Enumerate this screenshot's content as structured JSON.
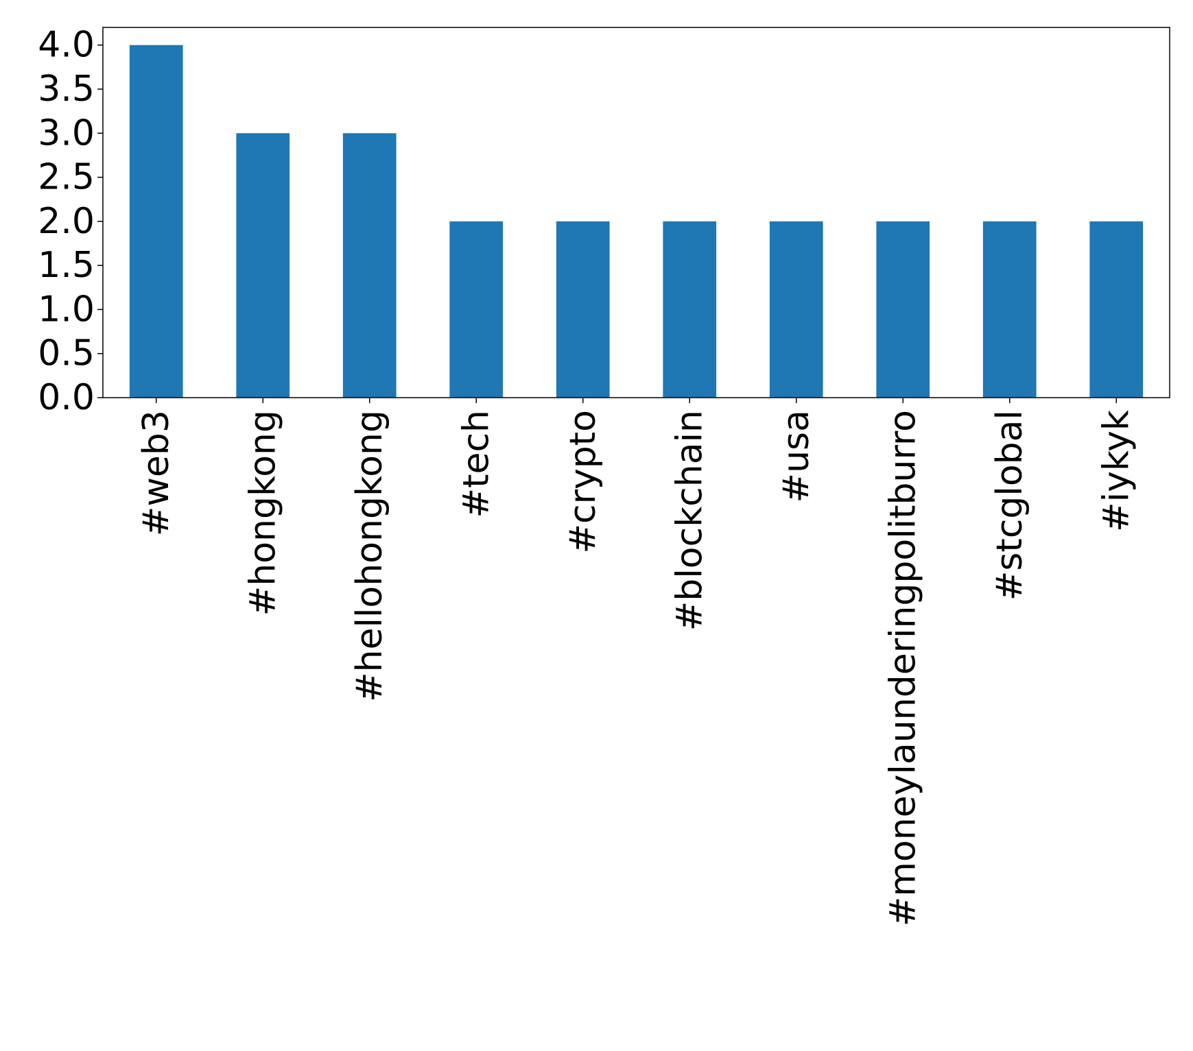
{
  "chart_data": {
    "type": "bar",
    "title": "",
    "xlabel": "",
    "ylabel": "",
    "categories": [
      "#web3",
      "#hongkong",
      "#hellohongkong",
      "#tech",
      "#crypto",
      "#blockchain",
      "#usa",
      "#moneylaunderingpolitburro",
      "#stcglobal",
      "#iykyk"
    ],
    "values": [
      4,
      3,
      3,
      2,
      2,
      2,
      2,
      2,
      2,
      2
    ],
    "ylim": [
      0,
      4.2
    ],
    "yticks": [
      "0.0",
      "0.5",
      "1.0",
      "1.5",
      "2.0",
      "2.5",
      "3.0",
      "3.5",
      "4.0"
    ],
    "grid": false,
    "legend": "none",
    "bar_color": "#1f77b4",
    "x_tick_rotation": "vertical"
  }
}
